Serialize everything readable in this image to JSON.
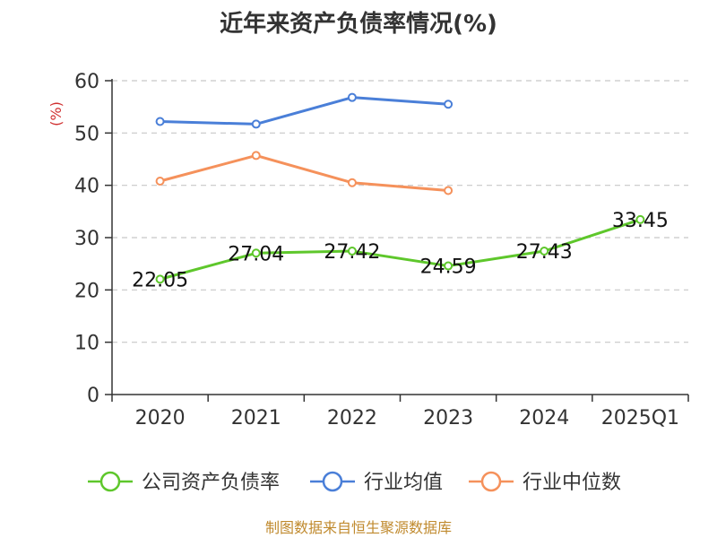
{
  "chart_data": {
    "type": "line",
    "title": "近年来资产负债率情况(%)",
    "ylabel": "(%)",
    "categories": [
      "2020",
      "2021",
      "2022",
      "2023",
      "2024",
      "2025Q1"
    ],
    "ylim": [
      0,
      60
    ],
    "yticks": [
      0,
      10,
      20,
      30,
      40,
      50,
      60
    ],
    "grid": true,
    "legend_position": "bottom",
    "series": [
      {
        "name": "公司资产负债率",
        "color": "#5ec72b",
        "values": [
          22.05,
          27.04,
          27.42,
          24.59,
          27.43,
          33.45
        ],
        "labels": [
          "22.05",
          "27.04",
          "27.42",
          "24.59",
          "27.43",
          "33.45"
        ]
      },
      {
        "name": "行业均值",
        "color": "#4a7fd8",
        "values": [
          52.2,
          51.7,
          56.8,
          55.5,
          null,
          null
        ]
      },
      {
        "name": "行业中位数",
        "color": "#f5915b",
        "values": [
          40.8,
          45.7,
          40.5,
          39.0,
          null,
          null
        ]
      }
    ]
  },
  "source": {
    "text": "制图数据来自恒生聚源数据库",
    "color": "#c08a2e"
  },
  "ylabel_color": "#d03030"
}
